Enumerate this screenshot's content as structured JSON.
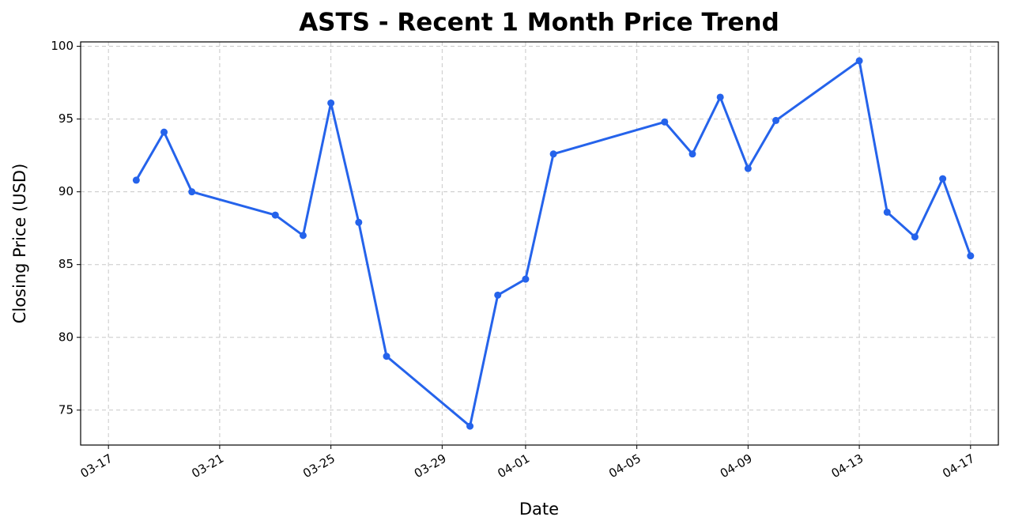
{
  "chart_data": {
    "type": "line",
    "title": "ASTS - Recent 1 Month Price Trend",
    "x_label": "Date",
    "y_label": "Closing Price (USD)",
    "x": [
      "03-18",
      "03-19",
      "03-20",
      "03-23",
      "03-24",
      "03-25",
      "03-26",
      "03-27",
      "03-30",
      "03-31",
      "04-01",
      "04-02",
      "04-06",
      "04-07",
      "04-08",
      "04-09",
      "04-10",
      "04-13",
      "04-14",
      "04-15",
      "04-16",
      "04-17"
    ],
    "series": [
      {
        "name": "Closing Price",
        "color": "#2563eb",
        "values": [
          90.8,
          94.1,
          90.0,
          88.4,
          87.0,
          96.1,
          87.9,
          78.7,
          73.9,
          82.9,
          84.0,
          92.6,
          94.8,
          92.6,
          96.5,
          91.6,
          94.9,
          99.0,
          88.6,
          86.9,
          90.9,
          85.6
        ]
      }
    ],
    "xlim": [
      "03-16",
      "04-18"
    ],
    "xticks": [
      "03-17",
      "03-21",
      "03-25",
      "03-29",
      "04-01",
      "04-05",
      "04-09",
      "04-13",
      "04-17"
    ],
    "ylim": [
      72.6,
      100.3
    ],
    "yticks": [
      75,
      80,
      85,
      90,
      95,
      100
    ],
    "grid": true
  }
}
